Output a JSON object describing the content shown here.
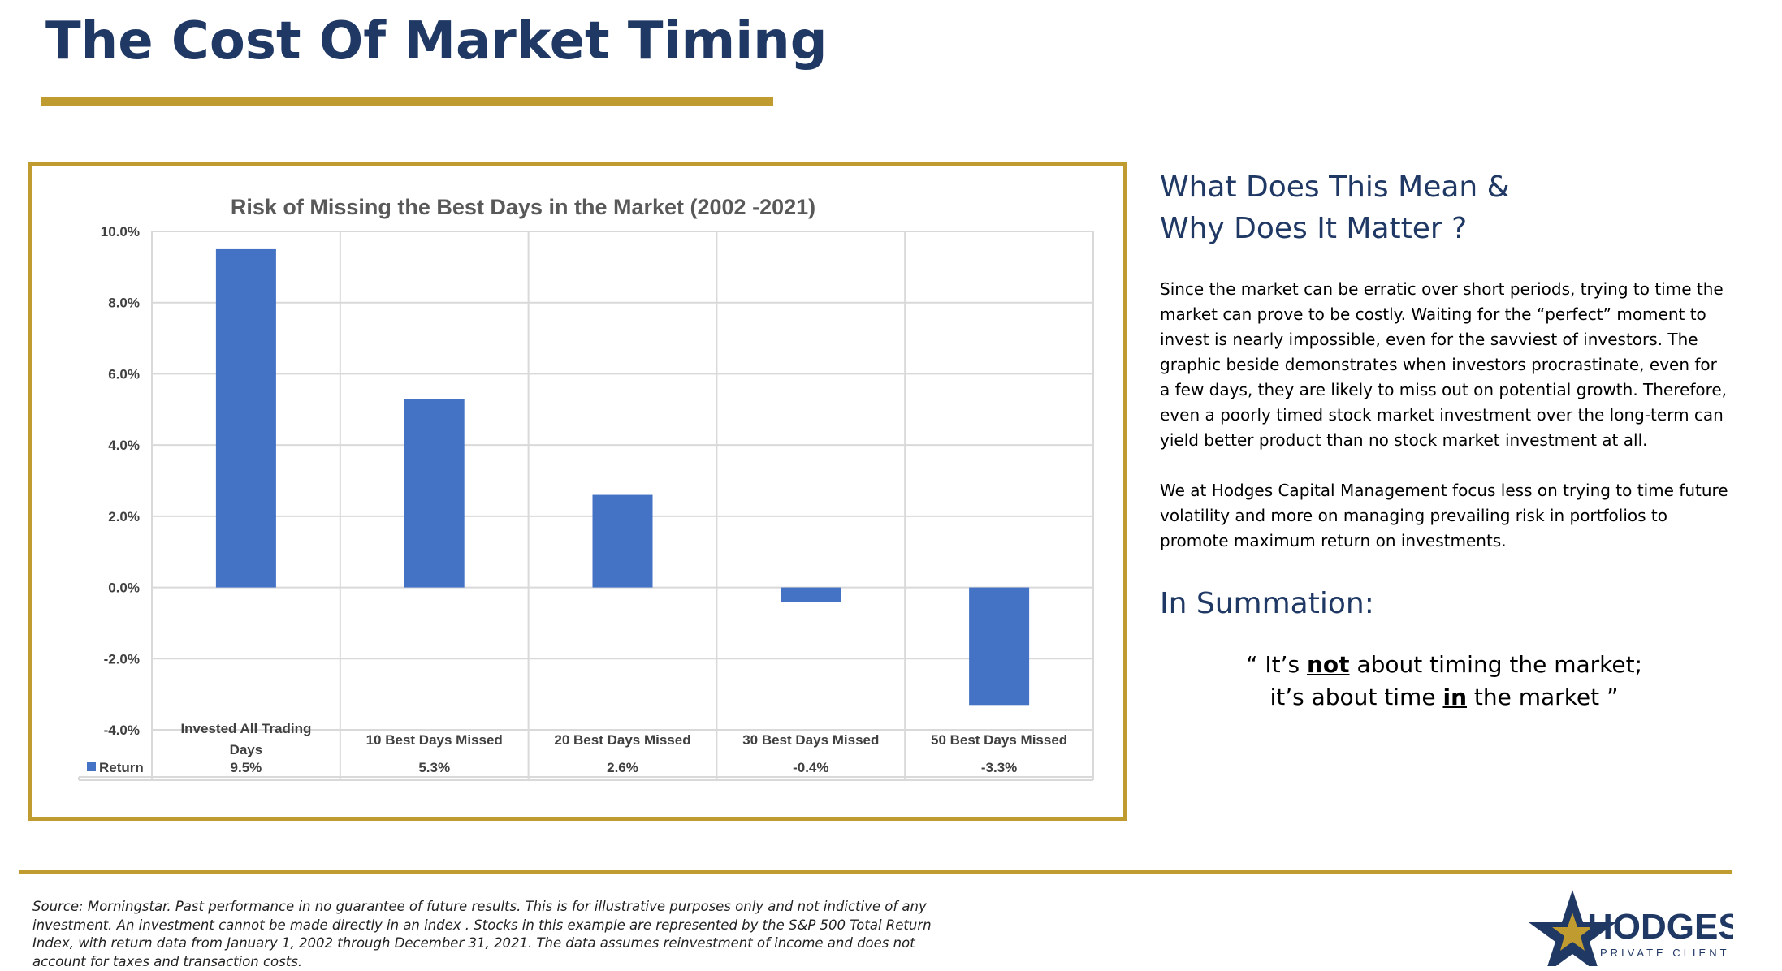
{
  "page": {
    "title": "The Cost Of Market Timing",
    "colors": {
      "navy": "#1f3864",
      "gold": "#bf9b30",
      "bar": "#4472c4"
    }
  },
  "side": {
    "heading_line1": "What Does This Mean &",
    "heading_line2": "Why Does It Matter ?",
    "paragraph1": "Since the market can be erratic over short periods, trying to time the market can prove to be costly. Waiting for the “perfect” moment to invest is nearly impossible, even for the savviest of investors. The graphic beside demonstrates when investors procrastinate, even for a few days, they are likely to miss out on potential growth. Therefore, even a poorly timed stock market investment over the long-term can yield better product than no stock market investment at all.",
    "paragraph2": "We at Hodges Capital Management focus less on trying to time future volatility and more on managing prevailing risk in portfolios to promote maximum return on investments.",
    "summation_heading": "In Summation:",
    "quote1_pre": "“ It’s ",
    "quote1_em": "not",
    "quote1_post": " about timing the market;",
    "quote2_pre": "it’s about time ",
    "quote2_em": "in",
    "quote2_post": " the market ”"
  },
  "footer": {
    "source": "Source: Morningstar. Past performance in no guarantee of future results. This is for illustrative purposes only and not indictive of any investment. An investment cannot be made directly in an index . Stocks in this example are represented by the S&P 500 Total Return Index, with return data from January 1, 2002 through December 31, 2021. The data assumes reinvestment of income and does not account for taxes and transaction costs.",
    "logo_text": "HODGES",
    "logo_subtext": "PRIVATE CLIENT",
    "logo_icon": "star-icon"
  },
  "chart_data": {
    "type": "bar",
    "title": "Risk of Missing the Best Days in the Market (2002 -2021)",
    "categories": [
      "Invested All Trading Days",
      "10 Best Days Missed",
      "20 Best Days Missed",
      "30 Best Days Missed",
      "50 Best Days Missed"
    ],
    "series": [
      {
        "name": "Return",
        "values": [
          9.5,
          5.3,
          2.6,
          -0.4,
          -3.3
        ],
        "labels": [
          "9.5%",
          "5.3%",
          "2.6%",
          "-0.4%",
          "-3.3%"
        ],
        "color": "#4472c4"
      }
    ],
    "ylim": [
      -4.0,
      10.0
    ],
    "yticks": [
      10.0,
      8.0,
      6.0,
      4.0,
      2.0,
      0.0,
      -2.0,
      -4.0
    ],
    "ytick_labels": [
      "10.0%",
      "8.0%",
      "6.0%",
      "4.0%",
      "2.0%",
      "0.0%",
      "-2.0%",
      "-4.0%"
    ],
    "grid": true,
    "data_table": true,
    "legend": "data-table"
  }
}
